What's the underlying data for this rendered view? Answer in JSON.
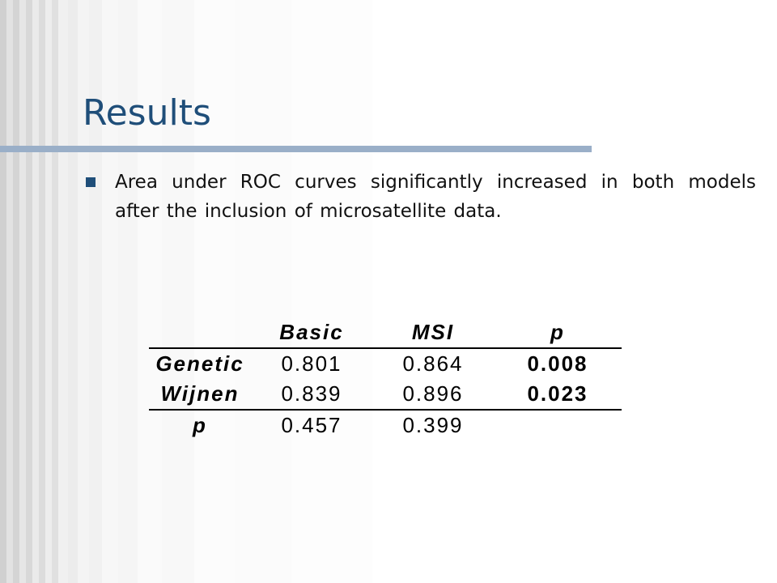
{
  "slide": {
    "title": "Results",
    "bullet": "Area under ROC curves significantly increased in both models after the inclusion of microsatellite data."
  },
  "table": {
    "headers": [
      "",
      "Basic",
      "MSI",
      "p"
    ],
    "rows": [
      {
        "label": "Genetic",
        "basic": "0.801",
        "msi": "0.864",
        "p": "0.008"
      },
      {
        "label": "Wijnen",
        "basic": "0.839",
        "msi": "0.896",
        "p": "0.023"
      },
      {
        "label": "p",
        "basic": "0.457",
        "msi": "0.399",
        "p": ""
      }
    ]
  },
  "colors": {
    "title": "#1f4e79",
    "rule": "#9aafc8",
    "bullet": "#1f4e79"
  }
}
